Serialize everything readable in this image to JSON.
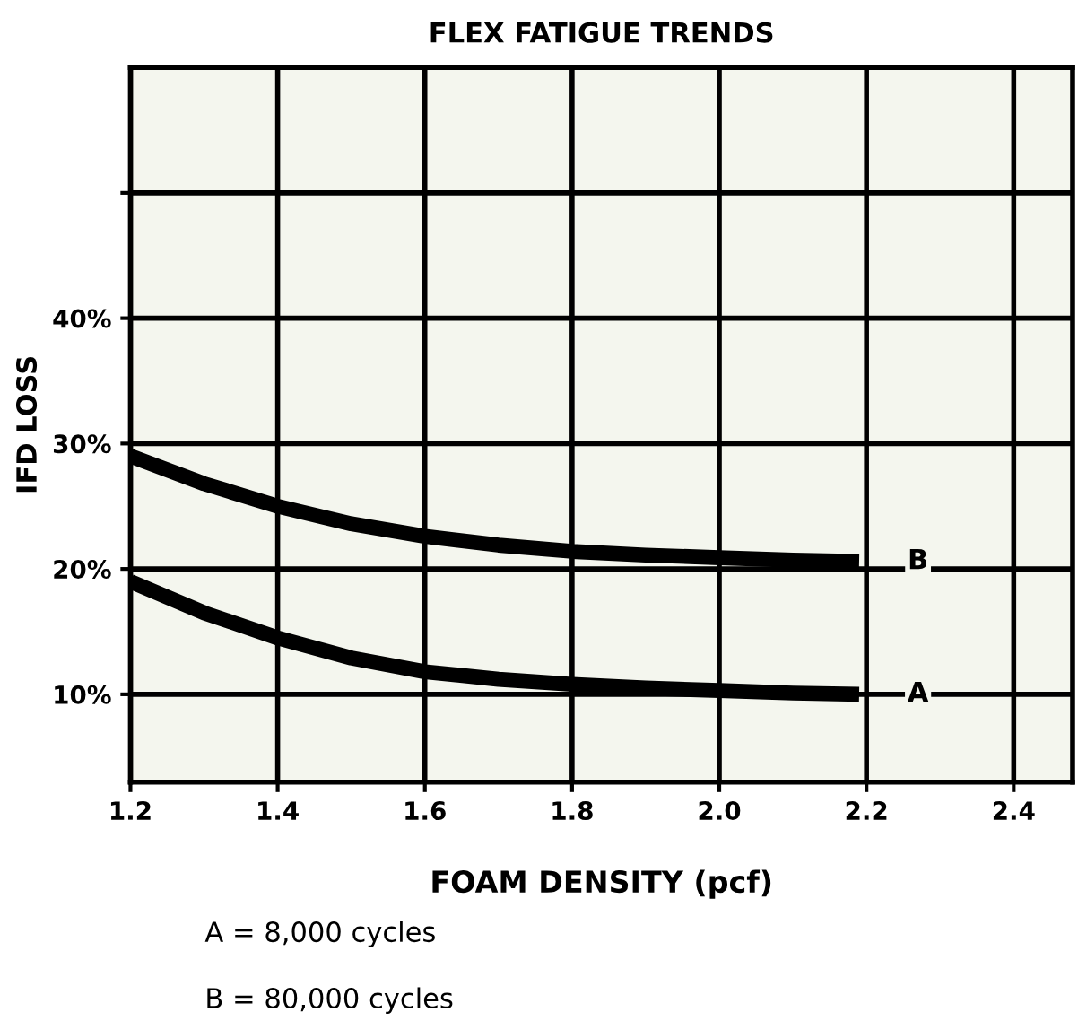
{
  "chart_data": {
    "type": "line",
    "title": "FLEX FATIGUE TRENDS",
    "xlabel": "FOAM DENSITY (pcf)",
    "ylabel": "IFD LOSS",
    "x": [
      1.2,
      1.3,
      1.4,
      1.5,
      1.6,
      1.7,
      1.8,
      1.9,
      2.0,
      2.1,
      2.19
    ],
    "series": [
      {
        "name": "A",
        "color": "#000000",
        "values": [
          19,
          16.5,
          14.5,
          12.9,
          11.8,
          11.2,
          10.8,
          10.5,
          10.3,
          10.1,
          10
        ]
      },
      {
        "name": "B",
        "color": "#000000",
        "values": [
          29,
          26.8,
          25,
          23.6,
          22.6,
          21.9,
          21.4,
          21.1,
          20.9,
          20.7,
          20.6
        ]
      }
    ],
    "xlim": [
      1.2,
      2.48
    ],
    "ylim": [
      3,
      60
    ],
    "xticks": [
      {
        "value": 1.2,
        "label": "1.2"
      },
      {
        "value": 1.4,
        "label": "1.4"
      },
      {
        "value": 1.6,
        "label": "1.6"
      },
      {
        "value": 1.8,
        "label": "1.8"
      },
      {
        "value": 2.0,
        "label": "2.0"
      },
      {
        "value": 2.2,
        "label": "2.2"
      },
      {
        "value": 2.4,
        "label": "2.4"
      }
    ],
    "yticks": [
      {
        "value": 10,
        "label": "10%"
      },
      {
        "value": 20,
        "label": "20%"
      },
      {
        "value": 30,
        "label": "30%"
      },
      {
        "value": 40,
        "label": "40%"
      },
      {
        "value": 50,
        "label": null
      }
    ],
    "grid": true,
    "marker": "none",
    "line_style": "solid",
    "legend": false,
    "annotations": [
      "A = 8,000 cycles",
      "B = 80,000 cycles"
    ]
  }
}
